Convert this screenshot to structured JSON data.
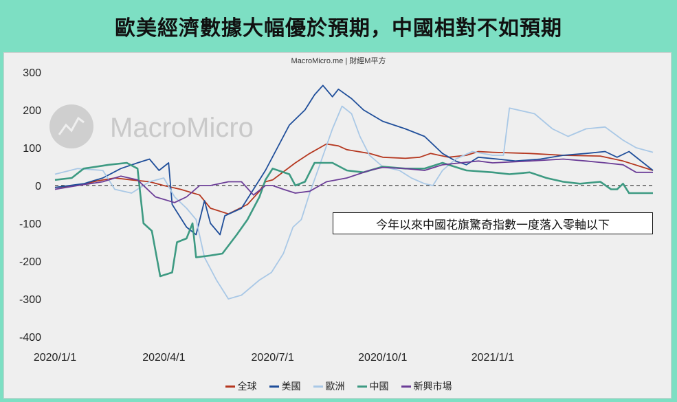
{
  "page_title": "歐美經濟數據大幅優於預期，中國相對不如預期",
  "source_text": "MacroMicro.me | 財經M平方",
  "watermark_text": "MacroMicro",
  "annotation_text": "今年以來中國花旗驚奇指數一度落入零軸以下",
  "colors": {
    "background": "#7ddfc3",
    "panel": "#efefef"
  },
  "chart_data": {
    "type": "line",
    "title": "",
    "xlabel": "",
    "ylabel": "",
    "ylim": [
      -400,
      300
    ],
    "yticks": [
      300,
      200,
      100,
      0,
      -100,
      -200,
      -300,
      -400
    ],
    "x_tick_labels": [
      "2020/1/1",
      "2020/4/1",
      "2020/7/1",
      "2020/10/1",
      "2021/1/1"
    ],
    "x_tick_dates": [
      "2020-01-01",
      "2020-04-01",
      "2020-07-01",
      "2020-10-01",
      "2021-01-01"
    ],
    "x_range": [
      "2020-01-01",
      "2021-05-15"
    ],
    "grid": false,
    "zero_line": "dashed",
    "legend_position": "bottom",
    "series": [
      {
        "name": "全球",
        "color": "#b5371f",
        "points": [
          [
            "2020-01-01",
            -5
          ],
          [
            "2020-01-20",
            0
          ],
          [
            "2020-02-05",
            12
          ],
          [
            "2020-02-20",
            20
          ],
          [
            "2020-03-05",
            15
          ],
          [
            "2020-03-20",
            10
          ],
          [
            "2020-04-01",
            0
          ],
          [
            "2020-04-15",
            -10
          ],
          [
            "2020-05-01",
            -25
          ],
          [
            "2020-05-10",
            -60
          ],
          [
            "2020-05-25",
            -75
          ],
          [
            "2020-06-10",
            -50
          ],
          [
            "2020-06-20",
            -15
          ],
          [
            "2020-06-25",
            10
          ],
          [
            "2020-07-01",
            15
          ],
          [
            "2020-07-20",
            60
          ],
          [
            "2020-08-01",
            85
          ],
          [
            "2020-08-15",
            110
          ],
          [
            "2020-08-25",
            105
          ],
          [
            "2020-09-01",
            95
          ],
          [
            "2020-09-20",
            85
          ],
          [
            "2020-10-01",
            75
          ],
          [
            "2020-10-20",
            72
          ],
          [
            "2020-11-01",
            75
          ],
          [
            "2020-11-10",
            85
          ],
          [
            "2020-11-25",
            75
          ],
          [
            "2020-12-10",
            80
          ],
          [
            "2020-12-20",
            90
          ],
          [
            "2021-01-01",
            88
          ],
          [
            "2021-02-01",
            85
          ],
          [
            "2021-03-01",
            80
          ],
          [
            "2021-04-01",
            78
          ],
          [
            "2021-04-20",
            65
          ],
          [
            "2021-05-15",
            40
          ]
        ]
      },
      {
        "name": "美國",
        "color": "#1f4e9a",
        "points": [
          [
            "2020-01-01",
            -5
          ],
          [
            "2020-01-25",
            5
          ],
          [
            "2020-02-10",
            20
          ],
          [
            "2020-02-25",
            45
          ],
          [
            "2020-03-10",
            60
          ],
          [
            "2020-03-20",
            70
          ],
          [
            "2020-03-28",
            40
          ],
          [
            "2020-04-05",
            60
          ],
          [
            "2020-04-08",
            -50
          ],
          [
            "2020-04-20",
            -110
          ],
          [
            "2020-04-28",
            -130
          ],
          [
            "2020-05-05",
            -40
          ],
          [
            "2020-05-10",
            -100
          ],
          [
            "2020-05-18",
            -130
          ],
          [
            "2020-05-22",
            -80
          ],
          [
            "2020-06-05",
            -60
          ],
          [
            "2020-06-15",
            -10
          ],
          [
            "2020-06-25",
            40
          ],
          [
            "2020-07-05",
            100
          ],
          [
            "2020-07-15",
            160
          ],
          [
            "2020-07-28",
            200
          ],
          [
            "2020-08-05",
            240
          ],
          [
            "2020-08-12",
            265
          ],
          [
            "2020-08-20",
            235
          ],
          [
            "2020-08-25",
            255
          ],
          [
            "2020-09-05",
            230
          ],
          [
            "2020-09-15",
            200
          ],
          [
            "2020-10-01",
            170
          ],
          [
            "2020-10-20",
            150
          ],
          [
            "2020-11-05",
            130
          ],
          [
            "2020-11-20",
            85
          ],
          [
            "2020-12-01",
            65
          ],
          [
            "2020-12-10",
            55
          ],
          [
            "2020-12-20",
            75
          ],
          [
            "2021-01-05",
            70
          ],
          [
            "2021-01-20",
            65
          ],
          [
            "2021-02-10",
            70
          ],
          [
            "2021-03-01",
            80
          ],
          [
            "2021-03-20",
            85
          ],
          [
            "2021-04-05",
            90
          ],
          [
            "2021-04-15",
            75
          ],
          [
            "2021-04-25",
            90
          ],
          [
            "2021-05-15",
            40
          ]
        ]
      },
      {
        "name": "歐洲",
        "color": "#a9c8e6",
        "points": [
          [
            "2020-01-01",
            30
          ],
          [
            "2020-01-20",
            45
          ],
          [
            "2020-02-10",
            40
          ],
          [
            "2020-02-20",
            -10
          ],
          [
            "2020-03-05",
            -20
          ],
          [
            "2020-03-20",
            10
          ],
          [
            "2020-04-01",
            20
          ],
          [
            "2020-04-10",
            -30
          ],
          [
            "2020-04-20",
            -60
          ],
          [
            "2020-04-28",
            -90
          ],
          [
            "2020-05-05",
            -190
          ],
          [
            "2020-05-15",
            -250
          ],
          [
            "2020-05-25",
            -300
          ],
          [
            "2020-06-05",
            -290
          ],
          [
            "2020-06-20",
            -250
          ],
          [
            "2020-06-30",
            -230
          ],
          [
            "2020-07-10",
            -180
          ],
          [
            "2020-07-18",
            -110
          ],
          [
            "2020-07-25",
            -90
          ],
          [
            "2020-08-01",
            -20
          ],
          [
            "2020-08-10",
            60
          ],
          [
            "2020-08-20",
            150
          ],
          [
            "2020-08-28",
            210
          ],
          [
            "2020-09-05",
            190
          ],
          [
            "2020-09-12",
            130
          ],
          [
            "2020-09-20",
            80
          ],
          [
            "2020-10-01",
            50
          ],
          [
            "2020-10-15",
            40
          ],
          [
            "2020-10-25",
            20
          ],
          [
            "2020-11-05",
            5
          ],
          [
            "2020-11-12",
            0
          ],
          [
            "2020-11-20",
            40
          ],
          [
            "2020-12-01",
            70
          ],
          [
            "2020-12-15",
            90
          ],
          [
            "2021-01-01",
            80
          ],
          [
            "2021-01-10",
            80
          ],
          [
            "2021-01-15",
            205
          ],
          [
            "2021-02-05",
            190
          ],
          [
            "2021-02-20",
            150
          ],
          [
            "2021-03-05",
            130
          ],
          [
            "2021-03-20",
            150
          ],
          [
            "2021-04-05",
            155
          ],
          [
            "2021-04-20",
            120
          ],
          [
            "2021-05-01",
            100
          ],
          [
            "2021-05-15",
            88
          ]
        ]
      },
      {
        "name": "中國",
        "color": "#3d9a82",
        "points": [
          [
            "2020-01-01",
            15
          ],
          [
            "2020-01-15",
            20
          ],
          [
            "2020-01-25",
            45
          ],
          [
            "2020-02-15",
            55
          ],
          [
            "2020-03-01",
            60
          ],
          [
            "2020-03-10",
            45
          ],
          [
            "2020-03-15",
            -100
          ],
          [
            "2020-03-22",
            -120
          ],
          [
            "2020-03-29",
            -240
          ],
          [
            "2020-04-08",
            -230
          ],
          [
            "2020-04-12",
            -150
          ],
          [
            "2020-04-20",
            -140
          ],
          [
            "2020-04-25",
            -100
          ],
          [
            "2020-04-28",
            -190
          ],
          [
            "2020-05-10",
            -185
          ],
          [
            "2020-05-20",
            -180
          ],
          [
            "2020-06-01",
            -130
          ],
          [
            "2020-06-10",
            -90
          ],
          [
            "2020-06-20",
            -30
          ],
          [
            "2020-06-25",
            15
          ],
          [
            "2020-07-01",
            45
          ],
          [
            "2020-07-15",
            30
          ],
          [
            "2020-07-20",
            0
          ],
          [
            "2020-07-28",
            10
          ],
          [
            "2020-08-05",
            60
          ],
          [
            "2020-08-20",
            60
          ],
          [
            "2020-09-01",
            40
          ],
          [
            "2020-09-15",
            35
          ],
          [
            "2020-10-01",
            50
          ],
          [
            "2020-10-20",
            45
          ],
          [
            "2020-11-05",
            45
          ],
          [
            "2020-11-20",
            60
          ],
          [
            "2020-12-10",
            40
          ],
          [
            "2021-01-01",
            35
          ],
          [
            "2021-01-15",
            30
          ],
          [
            "2021-02-01",
            35
          ],
          [
            "2021-02-15",
            20
          ],
          [
            "2021-03-01",
            10
          ],
          [
            "2021-03-15",
            5
          ],
          [
            "2021-04-01",
            10
          ],
          [
            "2021-04-10",
            -10
          ],
          [
            "2021-04-15",
            -10
          ],
          [
            "2021-04-20",
            5
          ],
          [
            "2021-04-25",
            -20
          ],
          [
            "2021-05-15",
            -20
          ]
        ]
      },
      {
        "name": "新興市場",
        "color": "#6b3d97",
        "points": [
          [
            "2020-01-01",
            -10
          ],
          [
            "2020-01-20",
            0
          ],
          [
            "2020-02-10",
            10
          ],
          [
            "2020-02-25",
            25
          ],
          [
            "2020-03-10",
            15
          ],
          [
            "2020-03-25",
            -30
          ],
          [
            "2020-04-10",
            -45
          ],
          [
            "2020-04-20",
            -30
          ],
          [
            "2020-05-01",
            0
          ],
          [
            "2020-05-10",
            0
          ],
          [
            "2020-05-25",
            10
          ],
          [
            "2020-06-05",
            10
          ],
          [
            "2020-06-15",
            -25
          ],
          [
            "2020-06-25",
            0
          ],
          [
            "2020-07-01",
            0
          ],
          [
            "2020-07-10",
            -10
          ],
          [
            "2020-07-20",
            -20
          ],
          [
            "2020-08-01",
            -15
          ],
          [
            "2020-08-15",
            10
          ],
          [
            "2020-09-01",
            20
          ],
          [
            "2020-09-20",
            40
          ],
          [
            "2020-10-01",
            48
          ],
          [
            "2020-10-20",
            45
          ],
          [
            "2020-11-05",
            40
          ],
          [
            "2020-11-20",
            55
          ],
          [
            "2020-12-05",
            60
          ],
          [
            "2020-12-20",
            65
          ],
          [
            "2021-01-01",
            60
          ],
          [
            "2021-02-01",
            65
          ],
          [
            "2021-03-01",
            70
          ],
          [
            "2021-03-20",
            65
          ],
          [
            "2021-04-05",
            60
          ],
          [
            "2021-04-20",
            55
          ],
          [
            "2021-05-01",
            35
          ],
          [
            "2021-05-15",
            35
          ]
        ]
      }
    ]
  }
}
